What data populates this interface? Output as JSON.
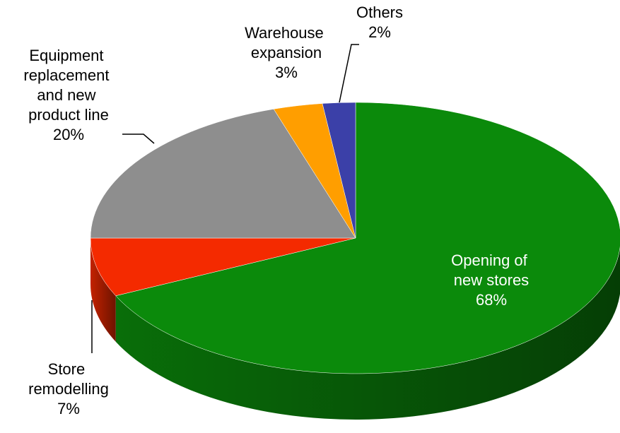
{
  "chart_data": {
    "type": "pie3d",
    "categories": [
      "Opening of new stores",
      "Store remodelling",
      "Equipment replacement and new product line",
      "Warehouse expansion",
      "Others"
    ],
    "values": [
      68,
      7,
      20,
      3,
      2
    ],
    "value_labels": [
      "68%",
      "7%",
      "20%",
      "3%",
      "2%"
    ],
    "colors": [
      "#0b8a0b",
      "#f42a00",
      "#8e8e8e",
      "#ff9e00",
      "#3b40a8"
    ]
  }
}
